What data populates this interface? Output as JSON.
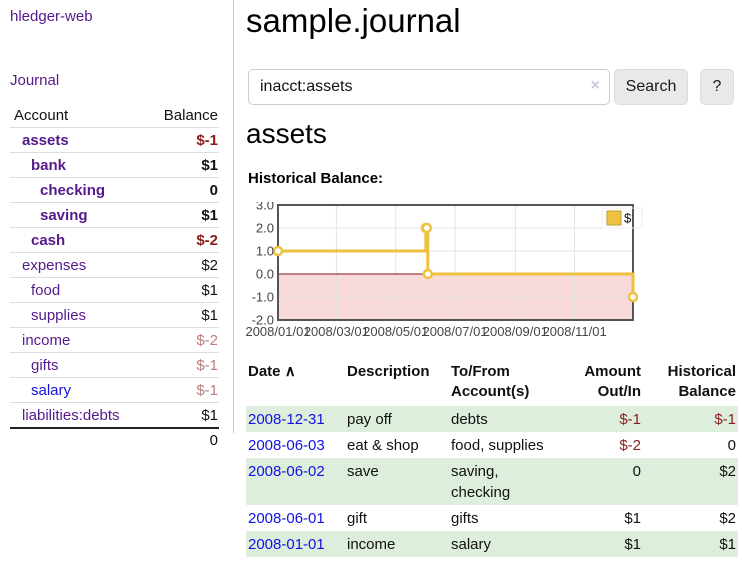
{
  "colors": {
    "link_purple": "#551a8b",
    "link_blue": "#1212e0",
    "negative_strong": "#8b1c1c",
    "negative_soft": "#bd7d7d",
    "row_green": "#ddeedd",
    "chart_line": "#edc240",
    "chart_negative_fill": "#f9dada",
    "chart_zero_line": "#871111",
    "chart_border": "#545454",
    "chart_grid": "#e3e3e3"
  },
  "sidebar": {
    "brand": "hledger-web",
    "journal_link": "Journal",
    "accounts": {
      "header_account": "Account",
      "header_balance": "Balance",
      "rows": [
        {
          "name": "assets",
          "depth": 1,
          "bold": true,
          "balance": "$-1",
          "balance_tone": "strong",
          "link_tone": "purple"
        },
        {
          "name": "bank",
          "depth": 2,
          "bold": true,
          "balance": "$1",
          "balance_tone": "normal",
          "link_tone": "purple"
        },
        {
          "name": "checking",
          "depth": 3,
          "bold": true,
          "balance": "0",
          "balance_tone": "normal",
          "link_tone": "purple"
        },
        {
          "name": "saving",
          "depth": 3,
          "bold": true,
          "balance": "$1",
          "balance_tone": "normal",
          "link_tone": "purple"
        },
        {
          "name": "cash",
          "depth": 2,
          "bold": true,
          "balance": "$-2",
          "balance_tone": "strong",
          "link_tone": "purple"
        },
        {
          "name": "expenses",
          "depth": 1,
          "bold": false,
          "balance": "$2",
          "balance_tone": "normal",
          "link_tone": "purple"
        },
        {
          "name": "food",
          "depth": 2,
          "bold": false,
          "balance": "$1",
          "balance_tone": "normal",
          "link_tone": "purple"
        },
        {
          "name": "supplies",
          "depth": 2,
          "bold": false,
          "balance": "$1",
          "balance_tone": "normal",
          "link_tone": "purple"
        },
        {
          "name": "income",
          "depth": 1,
          "bold": false,
          "balance": "$-2",
          "balance_tone": "soft",
          "link_tone": "purple"
        },
        {
          "name": "gifts",
          "depth": 2,
          "bold": false,
          "balance": "$-1",
          "balance_tone": "soft",
          "link_tone": "purple"
        },
        {
          "name": "salary",
          "depth": 2,
          "bold": false,
          "balance": "$-1",
          "balance_tone": "soft",
          "link_tone": "blue"
        },
        {
          "name": "liabilities:debts",
          "depth": 1,
          "bold": false,
          "balance": "$1",
          "balance_tone": "normal",
          "link_tone": "purple"
        }
      ],
      "total": "0"
    }
  },
  "main": {
    "title": "sample.journal",
    "search": {
      "value": "inacct:assets",
      "clear_icon": "×",
      "search_button": "Search",
      "help_button": "?"
    },
    "account_heading": "assets",
    "section_label": "Historical Balance:"
  },
  "chart_data": {
    "type": "line",
    "step": true,
    "title": "Historical Balance:",
    "series": [
      {
        "name": "$",
        "color": "#edc240",
        "points": [
          [
            "2008-01-01",
            1
          ],
          [
            "2008-06-01",
            2
          ],
          [
            "2008-06-02",
            2
          ],
          [
            "2008-06-03",
            0
          ],
          [
            "2008-12-31",
            -1
          ]
        ]
      }
    ],
    "ylim": [
      -2,
      3
    ],
    "yticks": [
      "3.0",
      "2.0",
      "1.0",
      "0.0",
      "-1.0",
      "-2.0"
    ],
    "xticks": [
      {
        "label": "2008/01/01",
        "day": 0
      },
      {
        "label": "2008/03/01",
        "day": 60
      },
      {
        "label": "2008/05/01",
        "day": 121
      },
      {
        "label": "2008/07/01",
        "day": 182
      },
      {
        "label": "2008/09/01",
        "day": 244
      },
      {
        "label": "2008/11/01",
        "day": 305
      }
    ],
    "x_range_days": 365,
    "grid": true,
    "legend": {
      "label": "$",
      "position": "top-right"
    },
    "negative_region": {
      "from": -2,
      "to": 0
    }
  },
  "transactions": {
    "headers": {
      "date": "Date",
      "sort_icon": "∧",
      "description": "Description",
      "accounts": "To/From Account(s)",
      "amount": "Amount Out/In",
      "balance": "Historical Balance"
    },
    "rows": [
      {
        "date": "2008-12-31",
        "description": "pay off",
        "accounts": "debts",
        "amount": "$-1",
        "amount_tone": "strong",
        "balance": "$-1",
        "balance_tone": "strong"
      },
      {
        "date": "2008-06-03",
        "description": "eat & shop",
        "accounts": "food, supplies",
        "amount": "$-2",
        "amount_tone": "strong",
        "balance": "0",
        "balance_tone": "normal"
      },
      {
        "date": "2008-06-02",
        "description": "save",
        "accounts": "saving, checking",
        "amount": "0",
        "amount_tone": "normal",
        "balance": "$2",
        "balance_tone": "normal"
      },
      {
        "date": "2008-06-01",
        "description": "gift",
        "accounts": "gifts",
        "amount": "$1",
        "amount_tone": "normal",
        "balance": "$2",
        "balance_tone": "normal"
      },
      {
        "date": "2008-01-01",
        "description": "income",
        "accounts": "salary",
        "amount": "$1",
        "amount_tone": "normal",
        "balance": "$1",
        "balance_tone": "normal"
      }
    ]
  }
}
